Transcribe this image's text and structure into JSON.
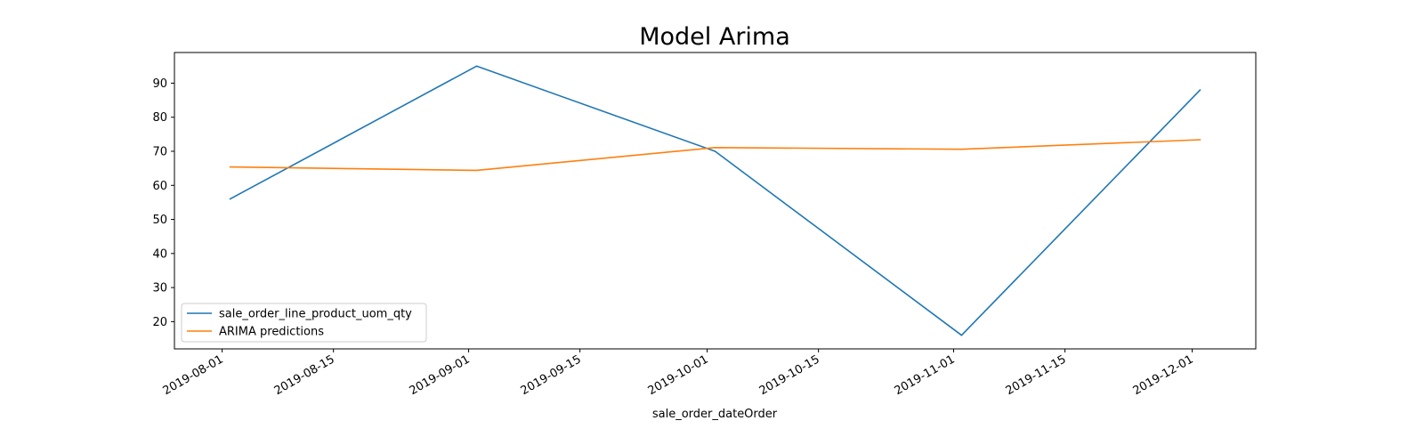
{
  "chart_data": {
    "type": "line",
    "title": "Model Arima",
    "xlabel": "sale_order_dateOrder",
    "ylabel": "",
    "x": [
      "2019-08-02",
      "2019-09-02",
      "2019-10-02",
      "2019-11-02",
      "2019-12-02"
    ],
    "series": [
      {
        "name": "sale_order_line_product_uom_qty",
        "color": "#1f77b4",
        "values": [
          56,
          95,
          70,
          16,
          88
        ]
      },
      {
        "name": "ARIMA predictions",
        "color": "#ff7f0e",
        "values": [
          65.4,
          64.4,
          71.1,
          70.6,
          73.4
        ]
      }
    ],
    "xlim": [
      "2019-07-26",
      "2019-12-09"
    ],
    "ylim": [
      12,
      99
    ],
    "xticks": [
      "2019-08-01",
      "2019-08-15",
      "2019-09-01",
      "2019-09-15",
      "2019-10-01",
      "2019-10-15",
      "2019-11-01",
      "2019-11-15",
      "2019-12-01"
    ],
    "yticks": [
      20,
      30,
      40,
      50,
      60,
      70,
      80,
      90
    ],
    "grid": false,
    "legend_position": "lower-left"
  }
}
